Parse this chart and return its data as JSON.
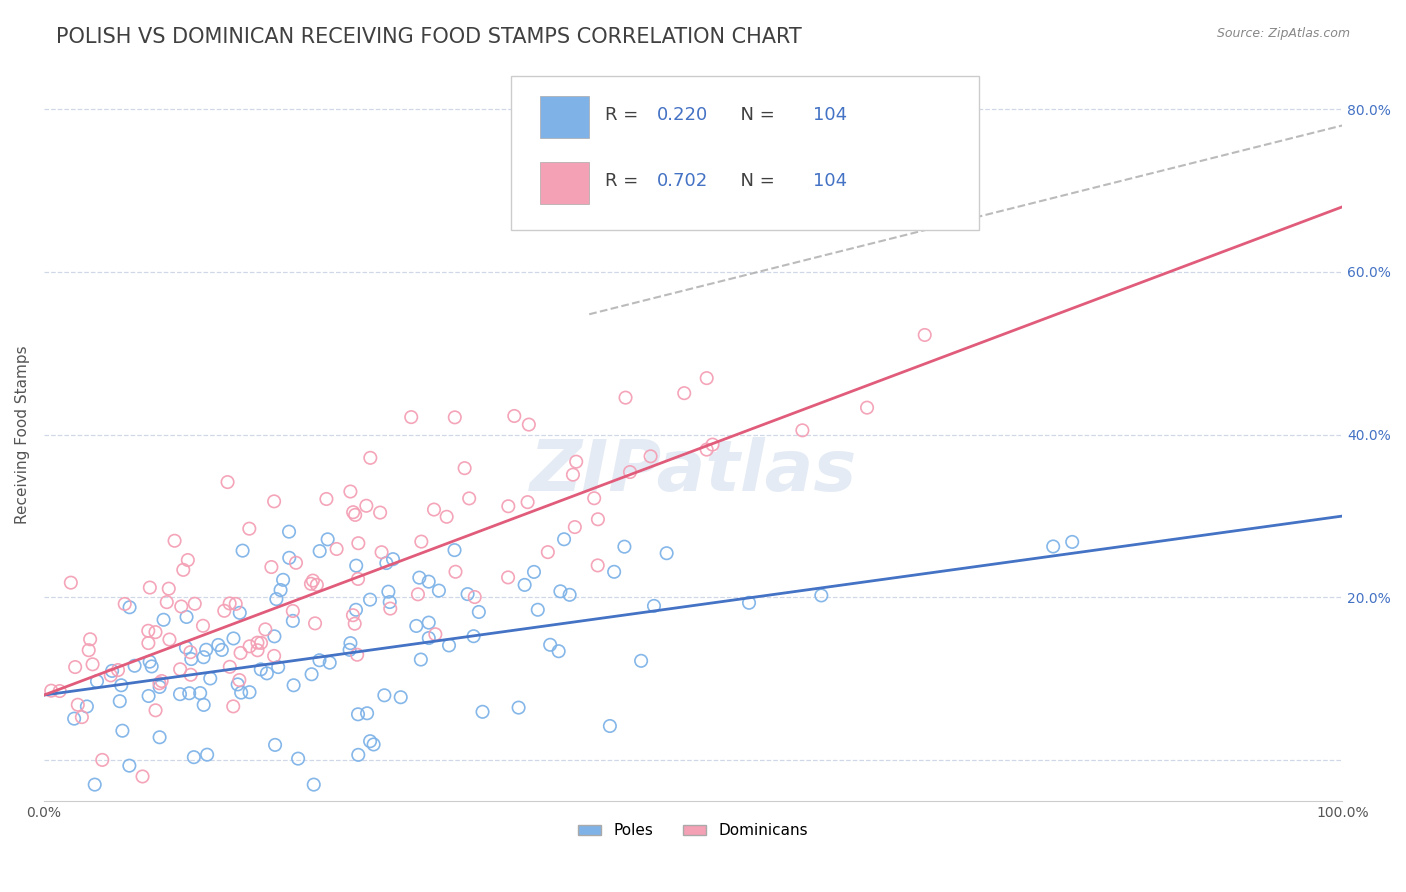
{
  "title": "POLISH VS DOMINICAN RECEIVING FOOD STAMPS CORRELATION CHART",
  "source": "Source: ZipAtlas.com",
  "ylabel": "Receiving Food Stamps",
  "xlim": [
    0.0,
    1.0
  ],
  "ylim": [
    -0.05,
    0.85
  ],
  "poles_color": "#7fb3e8",
  "dominicans_color": "#f4a0b5",
  "poles_line_color": "#4472c4",
  "dominicans_line_color": "#e05c7a",
  "R_poles": "0.220",
  "N_poles": "104",
  "R_dominicans": "0.702",
  "N_dominicans": "104",
  "watermark": "ZIPatlas",
  "poles_slope": 0.22,
  "poles_intercept": 0.08,
  "dominicans_slope": 0.6,
  "dominicans_intercept": 0.08,
  "background_color": "#ffffff",
  "grid_color": "#d0d8e8",
  "title_color": "#404040",
  "title_fontsize": 15,
  "label_fontsize": 11,
  "tick_fontsize": 10
}
